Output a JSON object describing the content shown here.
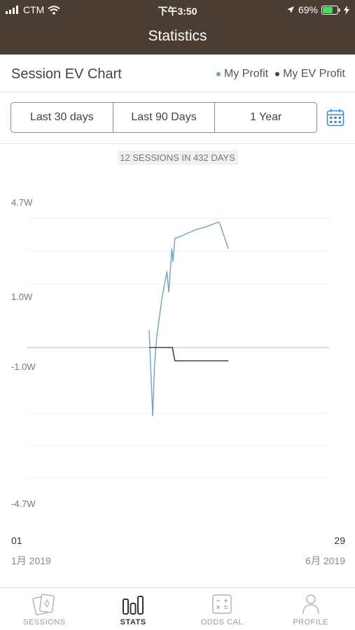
{
  "status_bar": {
    "carrier": "CTM",
    "time": "下午3:50",
    "battery": "69%",
    "battery_level": 0.69
  },
  "nav": {
    "title": "Statistics"
  },
  "chart_header": {
    "title": "Session EV Chart",
    "legend": [
      {
        "label": "My Profit",
        "color": "#6fa3c0"
      },
      {
        "label": "My EV Profit",
        "color": "#444444"
      }
    ]
  },
  "range_tabs": [
    {
      "label": "Last 30 days",
      "selected": false
    },
    {
      "label": "Last 90 Days",
      "selected": false
    },
    {
      "label": "1 Year",
      "selected": false
    }
  ],
  "sessions_summary": "12 SESSIONS IN 432 DAYS",
  "chart_data": {
    "type": "line",
    "y_tick_labels": [
      "4.7W",
      "1.0W",
      "-1.0W",
      "-4.7W"
    ],
    "y_tick_values": [
      4.7,
      1.0,
      -1.0,
      -4.7
    ],
    "ylim": [
      -4.7,
      4.7
    ],
    "xlim": [
      0,
      100
    ],
    "grid": true,
    "x_start_label": "01",
    "x_end_label": "29",
    "x_start_sub": "1月 2019",
    "x_end_sub": "6月 2019",
    "series": [
      {
        "name": "My Profit",
        "color": "#6fa3c0",
        "points": [
          [
            40.5,
            0.5
          ],
          [
            41.7,
            -1.9
          ],
          [
            42.3,
            -0.5
          ],
          [
            43.0,
            0.3
          ],
          [
            44.8,
            1.6
          ],
          [
            46.4,
            2.6
          ],
          [
            47.0,
            1.8
          ],
          [
            48.0,
            3.5
          ],
          [
            48.4,
            3.0
          ],
          [
            49.0,
            3.9
          ],
          [
            51.2,
            4.0
          ],
          [
            53.0,
            4.1
          ],
          [
            56.0,
            4.25
          ],
          [
            59.0,
            4.35
          ],
          [
            63.4,
            4.55
          ],
          [
            64.0,
            4.45
          ],
          [
            66.7,
            3.5
          ]
        ]
      },
      {
        "name": "My EV Profit",
        "color": "#444444",
        "points": [
          [
            40.5,
            0.0
          ],
          [
            48.2,
            0.0
          ],
          [
            49.0,
            -0.38
          ],
          [
            66.7,
            -0.38
          ]
        ]
      }
    ]
  },
  "tab_bar": [
    {
      "label": "SESSIONS",
      "icon": "cards-icon",
      "active": false
    },
    {
      "label": "STATS",
      "icon": "bar-chart-icon",
      "active": true
    },
    {
      "label": "ODDS CAL",
      "icon": "calculator-icon",
      "active": false
    },
    {
      "label": "PROFILE",
      "icon": "person-icon",
      "active": false
    }
  ]
}
